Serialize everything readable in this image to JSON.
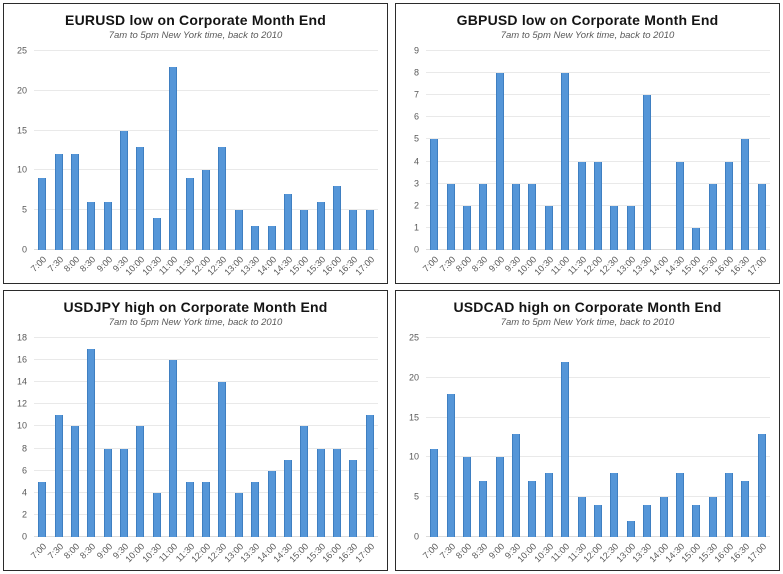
{
  "page": {
    "background": "#ffffff"
  },
  "colors": {
    "bar_fill": "#5596d8",
    "bar_border": "#3f7fc1",
    "gridline": "#e9e9e9",
    "axis_text": "#595959",
    "title_text": "#141414",
    "panel_border": "#2b2b2b"
  },
  "chart_data": [
    {
      "type": "bar",
      "title": "EURUSD low on Corporate Month End",
      "subtitle": "7am to 5pm New York time, back to 2010",
      "categories": [
        "7:00",
        "7:30",
        "8:00",
        "8:30",
        "9:00",
        "9:30",
        "10:00",
        "10:30",
        "11:00",
        "11:30",
        "12:00",
        "12:30",
        "13:00",
        "13:30",
        "14:00",
        "14:30",
        "15:00",
        "15:30",
        "16:00",
        "16:30",
        "17:00"
      ],
      "values": [
        9,
        12,
        12,
        6,
        6,
        15,
        13,
        4,
        23,
        9,
        10,
        13,
        5,
        3,
        3,
        7,
        5,
        6,
        8,
        5,
        5
      ],
      "xlabel": "",
      "ylabel": "",
      "ylim": [
        0,
        25
      ],
      "ytick_step": 5,
      "grid": true,
      "legend": false
    },
    {
      "type": "bar",
      "title": "GBPUSD low on Corporate Month End",
      "subtitle": "7am to 5pm New York time, back to 2010",
      "categories": [
        "7:00",
        "7:30",
        "8:00",
        "8:30",
        "9:00",
        "9:30",
        "10:00",
        "10:30",
        "11:00",
        "11:30",
        "12:00",
        "12:30",
        "13:00",
        "13:30",
        "14:00",
        "14:30",
        "15:00",
        "15:30",
        "16:00",
        "16:30",
        "17:00"
      ],
      "values": [
        5,
        3,
        2,
        3,
        8,
        3,
        3,
        2,
        8,
        4,
        4,
        2,
        2,
        7,
        0,
        4,
        1,
        3,
        4,
        5,
        3
      ],
      "xlabel": "",
      "ylabel": "",
      "ylim": [
        0,
        9
      ],
      "ytick_step": 1,
      "grid": true,
      "legend": false
    },
    {
      "type": "bar",
      "title": "USDJPY high on Corporate Month End",
      "subtitle": "7am to 5pm New York time, back to 2010",
      "categories": [
        "7:00",
        "7:30",
        "8:00",
        "8:30",
        "9:00",
        "9:30",
        "10:00",
        "10:30",
        "11:00",
        "11:30",
        "12:00",
        "12:30",
        "13:00",
        "13:30",
        "14:00",
        "14:30",
        "15:00",
        "15:30",
        "16:00",
        "16:30",
        "17:00"
      ],
      "values": [
        5,
        11,
        10,
        17,
        8,
        8,
        10,
        4,
        16,
        5,
        5,
        14,
        4,
        5,
        6,
        7,
        10,
        8,
        8,
        7,
        11
      ],
      "xlabel": "",
      "ylabel": "",
      "ylim": [
        0,
        18
      ],
      "ytick_step": 2,
      "grid": true,
      "legend": false
    },
    {
      "type": "bar",
      "title": "USDCAD high on Corporate Month End",
      "subtitle": "7am to 5pm New York time, back to 2010",
      "categories": [
        "7:00",
        "7:30",
        "8:00",
        "8:30",
        "9:00",
        "9:30",
        "10:00",
        "10:30",
        "11:00",
        "11:30",
        "12:00",
        "12:30",
        "13:00",
        "13:30",
        "14:00",
        "14:30",
        "15:00",
        "15:30",
        "16:00",
        "16:30",
        "17:00"
      ],
      "values": [
        11,
        18,
        10,
        7,
        10,
        13,
        7,
        8,
        22,
        5,
        4,
        8,
        2,
        4,
        5,
        8,
        4,
        5,
        8,
        7,
        13
      ],
      "xlabel": "",
      "ylabel": "",
      "ylim": [
        0,
        25
      ],
      "ytick_step": 5,
      "grid": true,
      "legend": false
    }
  ]
}
